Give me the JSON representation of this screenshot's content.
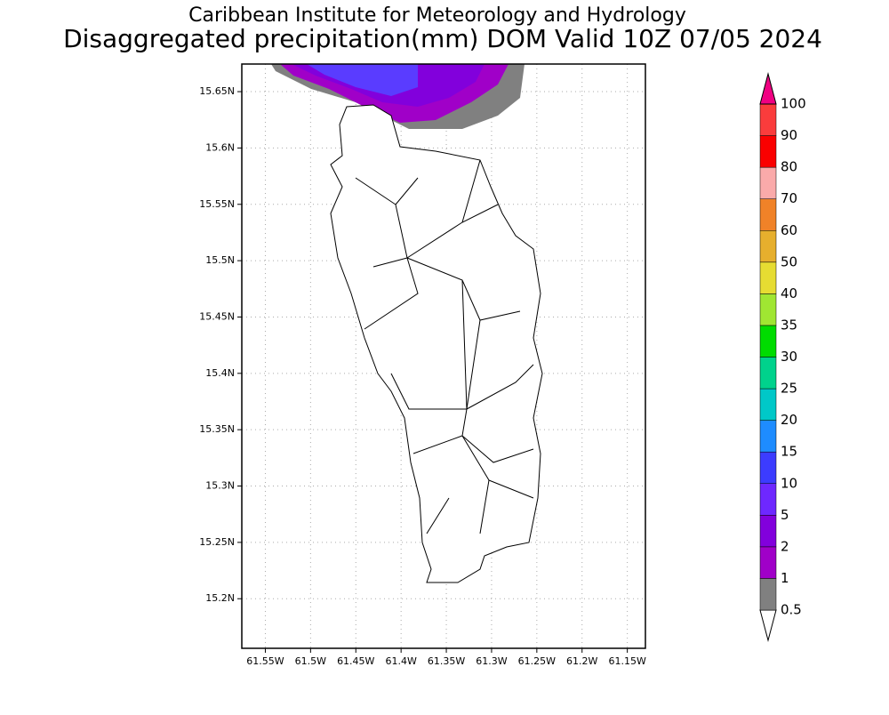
{
  "chart_data": {
    "type": "map",
    "title": "Caribbean Institute for Meteorology and Hydrology",
    "subtitle": "Disaggregated precipitation(mm) DOM Valid 10Z 07/05 2024",
    "xlim": [
      61.576,
      61.13
    ],
    "ylim": [
      15.156,
      15.6745
    ],
    "xticks": [
      {
        "value": 61.55,
        "label": "61.55W"
      },
      {
        "value": 61.5,
        "label": "61.5W"
      },
      {
        "value": 61.45,
        "label": "61.45W"
      },
      {
        "value": 61.4,
        "label": "61.4W"
      },
      {
        "value": 61.35,
        "label": "61.35W"
      },
      {
        "value": 61.3,
        "label": "61.3W"
      },
      {
        "value": 61.25,
        "label": "61.25W"
      },
      {
        "value": 61.2,
        "label": "61.2W"
      },
      {
        "value": 61.15,
        "label": "61.15W"
      }
    ],
    "yticks": [
      {
        "value": 15.2,
        "label": "15.2N"
      },
      {
        "value": 15.25,
        "label": "15.25N"
      },
      {
        "value": 15.3,
        "label": "15.3N"
      },
      {
        "value": 15.35,
        "label": "15.35N"
      },
      {
        "value": 15.4,
        "label": "15.4N"
      },
      {
        "value": 15.45,
        "label": "15.45N"
      },
      {
        "value": 15.5,
        "label": "15.5N"
      },
      {
        "value": 15.55,
        "label": "15.55N"
      },
      {
        "value": 15.6,
        "label": "15.6N"
      },
      {
        "value": 15.65,
        "label": "15.65N"
      }
    ],
    "grid": true,
    "colorbar": {
      "levels": [
        0.5,
        1,
        2,
        5,
        10,
        15,
        20,
        25,
        30,
        35,
        40,
        50,
        60,
        70,
        80,
        90,
        100
      ],
      "colors": [
        "#ffffff",
        "#808080",
        "#a000c8",
        "#8200dc",
        "#6e28ff",
        "#3c3cff",
        "#1e8cff",
        "#00c8c8",
        "#00d28c",
        "#00dc00",
        "#a0e632",
        "#e6dc32",
        "#e6af2d",
        "#f08228",
        "#faaaaa",
        "#fa0000",
        "#fa3c3c",
        "#f00082"
      ]
    }
  }
}
